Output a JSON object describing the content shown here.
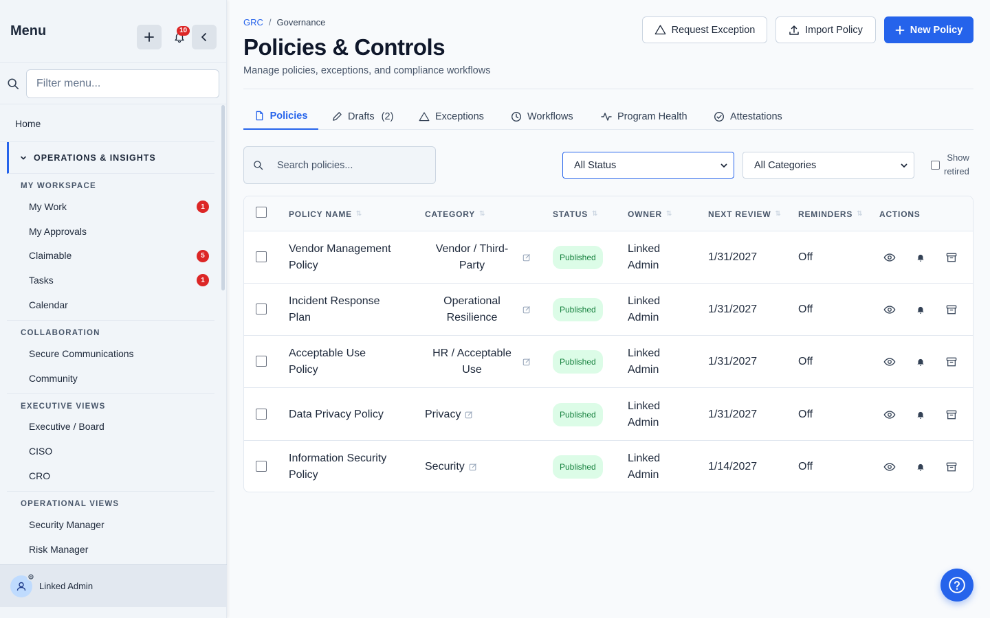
{
  "sidebar": {
    "title": "Menu",
    "notification_count": "10",
    "filter_placeholder": "Filter menu...",
    "home_label": "Home",
    "group_label": "OPERATIONS & INSIGHTS",
    "sections": [
      {
        "title": "MY WORKSPACE",
        "items": [
          {
            "label": "My Work",
            "badge": "1"
          },
          {
            "label": "My Approvals",
            "badge": ""
          },
          {
            "label": "Claimable",
            "badge": "5"
          },
          {
            "label": "Tasks",
            "badge": "1"
          },
          {
            "label": "Calendar",
            "badge": ""
          }
        ]
      },
      {
        "title": "COLLABORATION",
        "items": [
          {
            "label": "Secure Communications",
            "badge": ""
          },
          {
            "label": "Community",
            "badge": ""
          }
        ]
      },
      {
        "title": "EXECUTIVE VIEWS",
        "items": [
          {
            "label": "Executive / Board",
            "badge": ""
          },
          {
            "label": "CISO",
            "badge": ""
          },
          {
            "label": "CRO",
            "badge": ""
          }
        ]
      },
      {
        "title": "OPERATIONAL VIEWS",
        "items": [
          {
            "label": "Security Manager",
            "badge": ""
          },
          {
            "label": "Risk Manager",
            "badge": ""
          }
        ]
      }
    ],
    "user_name": "Linked Admin"
  },
  "header": {
    "breadcrumb": [
      "GRC",
      "Governance"
    ],
    "title": "Policies & Controls",
    "subtitle": "Manage policies, exceptions, and compliance workflows",
    "buttons": {
      "request_exception": "Request Exception",
      "import_policy": "Import Policy",
      "new_policy": "New Policy"
    }
  },
  "tabs": [
    {
      "label": "Policies",
      "count": ""
    },
    {
      "label": "Drafts",
      "count": "(2)"
    },
    {
      "label": "Exceptions",
      "count": ""
    },
    {
      "label": "Workflows",
      "count": ""
    },
    {
      "label": "Program Health",
      "count": ""
    },
    {
      "label": "Attestations",
      "count": ""
    }
  ],
  "filters": {
    "search_placeholder": "Search policies...",
    "status_value": "All Status",
    "category_value": "All Categories",
    "show_retired_label_1": "Show",
    "show_retired_label_2": "retired"
  },
  "table": {
    "columns": [
      "POLICY NAME",
      "CATEGORY",
      "STATUS",
      "OWNER",
      "NEXT REVIEW",
      "REMINDERS",
      "ACTIONS"
    ],
    "rows": [
      {
        "name_1": "Vendor Management",
        "name_2": "Policy",
        "cat_1": "Vendor / Third-",
        "cat_2": "Party",
        "status": "Published",
        "owner_1": "Linked",
        "owner_2": "Admin",
        "next_review": "1/31/2027",
        "reminders": "Off"
      },
      {
        "name_1": "Incident Response",
        "name_2": "Plan",
        "cat_1": "Operational",
        "cat_2": "Resilience",
        "status": "Published",
        "owner_1": "Linked",
        "owner_2": "Admin",
        "next_review": "1/31/2027",
        "reminders": "Off"
      },
      {
        "name_1": "Acceptable Use",
        "name_2": "Policy",
        "cat_1": "HR / Acceptable",
        "cat_2": "Use",
        "status": "Published",
        "owner_1": "Linked",
        "owner_2": "Admin",
        "next_review": "1/31/2027",
        "reminders": "Off"
      },
      {
        "name_1": "Data Privacy Policy",
        "name_2": "",
        "cat_1": "Privacy",
        "cat_2": "",
        "status": "Published",
        "owner_1": "Linked",
        "owner_2": "Admin",
        "next_review": "1/31/2027",
        "reminders": "Off"
      },
      {
        "name_1": "Information Security",
        "name_2": "Policy",
        "cat_1": "Security",
        "cat_2": "",
        "status": "Published",
        "owner_1": "Linked",
        "owner_2": "Admin",
        "next_review": "1/14/2027",
        "reminders": "Off"
      }
    ]
  },
  "colors": {
    "accent": "#2563eb",
    "badge": "#dc2626",
    "published_bg": "#dcfce7",
    "published_text": "#15803d"
  },
  "icons": [
    "plus-icon",
    "bell-icon",
    "chevron-left-icon",
    "search-icon",
    "chevron-down-icon",
    "user-icon",
    "gear-icon",
    "warning-icon",
    "upload-icon",
    "document-icon",
    "pencil-icon",
    "clock-icon",
    "activity-icon",
    "check-circle-icon",
    "eye-icon",
    "archive-icon",
    "help-icon"
  ]
}
